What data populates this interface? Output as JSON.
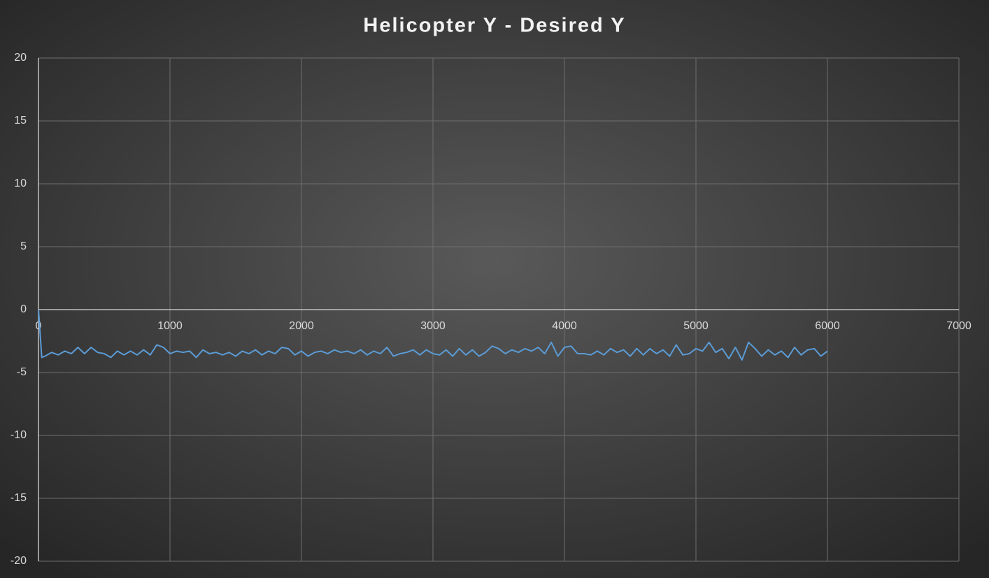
{
  "chart_data": {
    "type": "line",
    "title": "Helicopter Y - Desired Y",
    "x": [
      0,
      25,
      50,
      100,
      150,
      200,
      250,
      300,
      350,
      400,
      450,
      500,
      550,
      600,
      650,
      700,
      750,
      800,
      850,
      900,
      950,
      1000,
      1050,
      1100,
      1150,
      1200,
      1250,
      1300,
      1350,
      1400,
      1450,
      1500,
      1550,
      1600,
      1650,
      1700,
      1750,
      1800,
      1850,
      1900,
      1950,
      2000,
      2050,
      2100,
      2150,
      2200,
      2250,
      2300,
      2350,
      2400,
      2450,
      2500,
      2550,
      2600,
      2650,
      2700,
      2750,
      2800,
      2850,
      2900,
      2950,
      3000,
      3050,
      3100,
      3150,
      3200,
      3250,
      3300,
      3350,
      3400,
      3450,
      3500,
      3550,
      3600,
      3650,
      3700,
      3750,
      3800,
      3850,
      3900,
      3950,
      4000,
      4050,
      4100,
      4150,
      4200,
      4250,
      4300,
      4350,
      4400,
      4450,
      4500,
      4550,
      4600,
      4650,
      4700,
      4750,
      4800,
      4850,
      4900,
      4950,
      5000,
      5050,
      5100,
      5150,
      5200,
      5250,
      5300,
      5350,
      5400,
      5450,
      5500,
      5550,
      5600,
      5650,
      5700,
      5750,
      5800,
      5850,
      5900,
      5950,
      6000
    ],
    "series": [
      {
        "name": "Helicopter Y - Desired Y",
        "color": "#5b9bd5",
        "values": [
          0,
          -3.8,
          -3.7,
          -3.4,
          -3.6,
          -3.3,
          -3.5,
          -3.0,
          -3.5,
          -3.0,
          -3.4,
          -3.5,
          -3.8,
          -3.3,
          -3.6,
          -3.3,
          -3.6,
          -3.2,
          -3.6,
          -2.8,
          -3.0,
          -3.5,
          -3.3,
          -3.4,
          -3.3,
          -3.8,
          -3.2,
          -3.5,
          -3.4,
          -3.6,
          -3.4,
          -3.7,
          -3.3,
          -3.5,
          -3.2,
          -3.6,
          -3.3,
          -3.5,
          -3.0,
          -3.1,
          -3.6,
          -3.3,
          -3.7,
          -3.4,
          -3.3,
          -3.5,
          -3.2,
          -3.4,
          -3.3,
          -3.5,
          -3.2,
          -3.6,
          -3.3,
          -3.5,
          -3.0,
          -3.7,
          -3.5,
          -3.4,
          -3.2,
          -3.6,
          -3.2,
          -3.5,
          -3.6,
          -3.2,
          -3.7,
          -3.1,
          -3.6,
          -3.2,
          -3.7,
          -3.4,
          -2.9,
          -3.1,
          -3.5,
          -3.2,
          -3.4,
          -3.1,
          -3.3,
          -3.0,
          -3.5,
          -2.6,
          -3.7,
          -3.0,
          -2.9,
          -3.5,
          -3.5,
          -3.6,
          -3.3,
          -3.6,
          -3.1,
          -3.4,
          -3.2,
          -3.7,
          -3.1,
          -3.6,
          -3.1,
          -3.5,
          -3.2,
          -3.7,
          -2.8,
          -3.6,
          -3.5,
          -3.1,
          -3.3,
          -2.6,
          -3.4,
          -3.1,
          -3.9,
          -3.0,
          -4.0,
          -2.6,
          -3.1,
          -3.7,
          -3.2,
          -3.6,
          -3.3,
          -3.8,
          -3.0,
          -3.6,
          -3.2,
          -3.1,
          -3.7,
          -3.3
        ]
      }
    ],
    "xlim": [
      0,
      7000
    ],
    "xticks": [
      0,
      1000,
      2000,
      3000,
      4000,
      5000,
      6000,
      7000
    ],
    "ylim": [
      -20,
      20
    ],
    "yticks": [
      20,
      15,
      10,
      5,
      0,
      -5,
      -10,
      -15,
      -20
    ],
    "grid": true
  }
}
